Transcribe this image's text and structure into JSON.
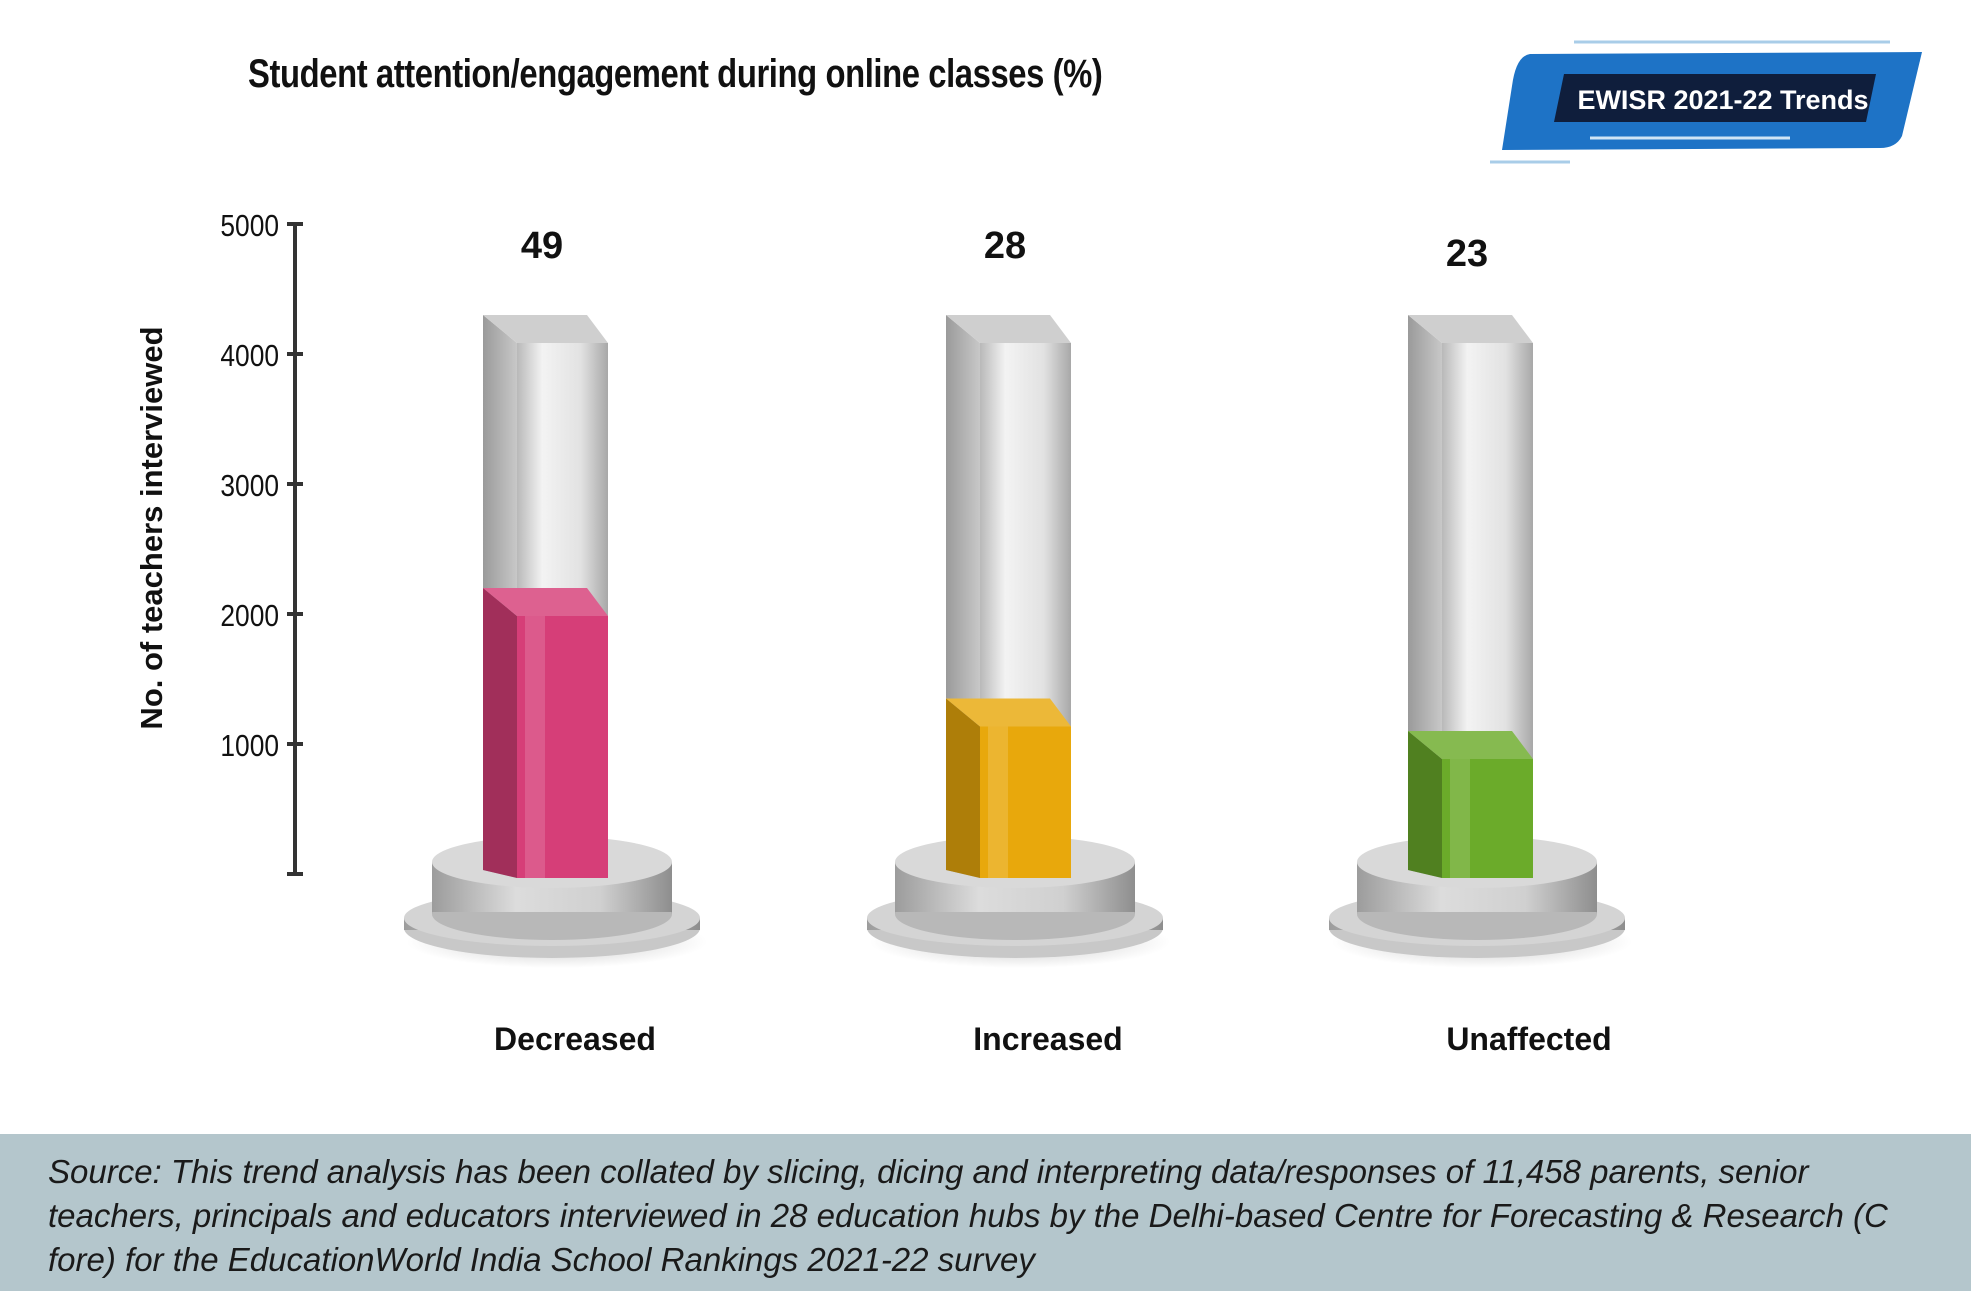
{
  "header": {
    "title": "Student attention/engagement during online classes (%)",
    "badge_label": "EWISR 2021-22 Trends"
  },
  "chart_data": {
    "type": "bar",
    "title": "Student attention/engagement during online classes (%)",
    "ylabel": "No. of teachers interviewed",
    "xlabel": "",
    "ylim": [
      0,
      5000
    ],
    "yticks": [
      "1000",
      "2000",
      "3000",
      "4000",
      "5000"
    ],
    "categories": [
      "Decreased",
      "Increased",
      "Unaffected"
    ],
    "values": [
      49,
      28,
      23
    ],
    "value_labels": [
      "49",
      "28",
      "23"
    ],
    "fill_levels": [
      2200,
      1350,
      1100
    ],
    "colors": [
      "#d63e78",
      "#e8a80c",
      "#6bab2a"
    ],
    "grid": false,
    "legend": "none"
  },
  "footer": {
    "source_text": "Source: This trend analysis has been collated by slicing, dicing and interpreting data/responses of 11,458 parents, senior teachers, principals and educators interviewed in 28 education hubs by the Delhi-based Centre for Forecasting & Research (C fore) for the EducationWorld India School Rankings 2021-22 survey"
  }
}
